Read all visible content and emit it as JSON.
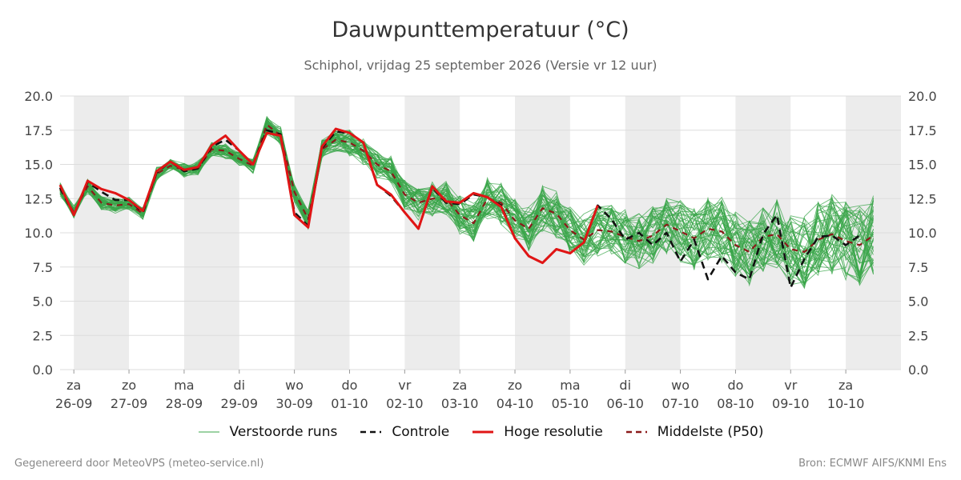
{
  "header": {
    "title": "Dauwpunttemperatuur (°C)",
    "subtitle": "Schiphol, vrijdag 25 september 2026 (Versie vr 12 uur)"
  },
  "footer": {
    "left": "Gegenereerd door MeteoVPS (meteo-service.nl)",
    "right": "Bron: ECMWF AIFS/KNMI Ens"
  },
  "colors": {
    "ensemble": "#3aa64a",
    "controle": "#111111",
    "hoge_resolutie": "#e01515",
    "p50": "#8b1a1a",
    "band": "#ececec",
    "grid": "#dddddd"
  },
  "legend": [
    {
      "key": "ensemble",
      "label": "Verstoorde runs",
      "style": "thin"
    },
    {
      "key": "controle",
      "label": "Controle",
      "style": "dashed"
    },
    {
      "key": "hoge_resolutie",
      "label": "Hoge resolutie",
      "style": "solid"
    },
    {
      "key": "p50",
      "label": "Middelste (P50)",
      "style": "dashed"
    }
  ],
  "chart_data": {
    "type": "line",
    "title": "Dauwpunttemperatuur (°C)",
    "subtitle": "Schiphol, vrijdag 25 september 2026 (Versie vr 12 uur)",
    "x_unit": "days from 26-09 00h (6-hourly steps)",
    "x_range": [
      -0.25,
      15
    ],
    "ylim": [
      0,
      20
    ],
    "yticks": [
      "0.0",
      "2.5",
      "5.0",
      "7.5",
      "10.0",
      "12.5",
      "15.0",
      "17.5",
      "20.0"
    ],
    "xticks": [
      {
        "day": "za",
        "date": "26-09"
      },
      {
        "day": "zo",
        "date": "27-09"
      },
      {
        "day": "ma",
        "date": "28-09"
      },
      {
        "day": "di",
        "date": "29-09"
      },
      {
        "day": "wo",
        "date": "30-09"
      },
      {
        "day": "do",
        "date": "01-10"
      },
      {
        "day": "vr",
        "date": "02-10"
      },
      {
        "day": "za",
        "date": "03-10"
      },
      {
        "day": "zo",
        "date": "04-10"
      },
      {
        "day": "ma",
        "date": "05-10"
      },
      {
        "day": "di",
        "date": "06-10"
      },
      {
        "day": "wo",
        "date": "07-10"
      },
      {
        "day": "do",
        "date": "08-10"
      },
      {
        "day": "vr",
        "date": "09-10"
      },
      {
        "day": "za",
        "date": "10-10"
      }
    ],
    "shaded_days": [
      0,
      2,
      4,
      6,
      8,
      10,
      12,
      14
    ],
    "grid": true,
    "legend_position": "bottom",
    "series": [
      {
        "name": "Hoge resolutie",
        "x_start": -0.25,
        "x_step": 0.25,
        "values": [
          13.5,
          11.3,
          13.8,
          13.2,
          12.9,
          12.4,
          11.6,
          14.5,
          15.2,
          14.6,
          14.8,
          16.4,
          17.1,
          16.0,
          15.0,
          17.3,
          17.1,
          11.3,
          10.4,
          16.3,
          17.6,
          17.3,
          16.6,
          13.5,
          12.8,
          11.5,
          10.3,
          13.4,
          12.3,
          12.2,
          12.9,
          12.6,
          11.9,
          9.6,
          8.3,
          7.8,
          8.8,
          8.5,
          9.3,
          12.0
        ]
      },
      {
        "name": "Controle",
        "x_start": -0.25,
        "x_step": 0.25,
        "values": [
          13.3,
          11.3,
          13.7,
          13.0,
          12.4,
          12.4,
          11.5,
          14.4,
          15.2,
          14.5,
          14.7,
          16.3,
          16.8,
          16.0,
          15.0,
          17.5,
          17.2,
          11.5,
          10.5,
          16.2,
          17.4,
          17.3,
          16.6,
          13.5,
          12.7,
          11.5,
          10.3,
          13.3,
          12.2,
          12.1,
          12.8,
          12.6,
          12.0,
          9.6,
          8.3,
          7.8,
          8.8,
          8.5,
          9.3,
          12.0,
          11.0,
          9.5,
          10.0,
          9.1,
          10.0,
          7.9,
          9.5,
          6.6,
          8.3,
          7.1,
          6.6,
          9.9,
          11.3,
          6.0,
          8.1,
          9.7,
          9.8,
          9.1,
          9.8
        ]
      },
      {
        "name": "Middelste (P50)",
        "x_start": -0.25,
        "x_step": 0.25,
        "values": [
          13.2,
          11.5,
          13.4,
          12.2,
          12.0,
          12.1,
          11.4,
          14.3,
          14.9,
          14.6,
          14.7,
          16.1,
          16.0,
          15.4,
          14.9,
          17.9,
          17.1,
          13.0,
          11.0,
          16.1,
          16.8,
          16.6,
          16.0,
          15.0,
          14.5,
          12.8,
          12.2,
          12.5,
          12.5,
          11.3,
          10.7,
          12.5,
          12.2,
          10.9,
          10.3,
          11.8,
          11.4,
          10.2,
          9.5,
          10.2,
          10.1,
          9.7,
          9.4,
          9.8,
          10.6,
          10.1,
          9.6,
          10.3,
          10.1,
          9.1,
          8.6,
          9.7,
          9.9,
          8.8,
          8.6,
          9.5,
          9.9,
          9.4,
          9.1,
          9.8
        ]
      }
    ]
  }
}
